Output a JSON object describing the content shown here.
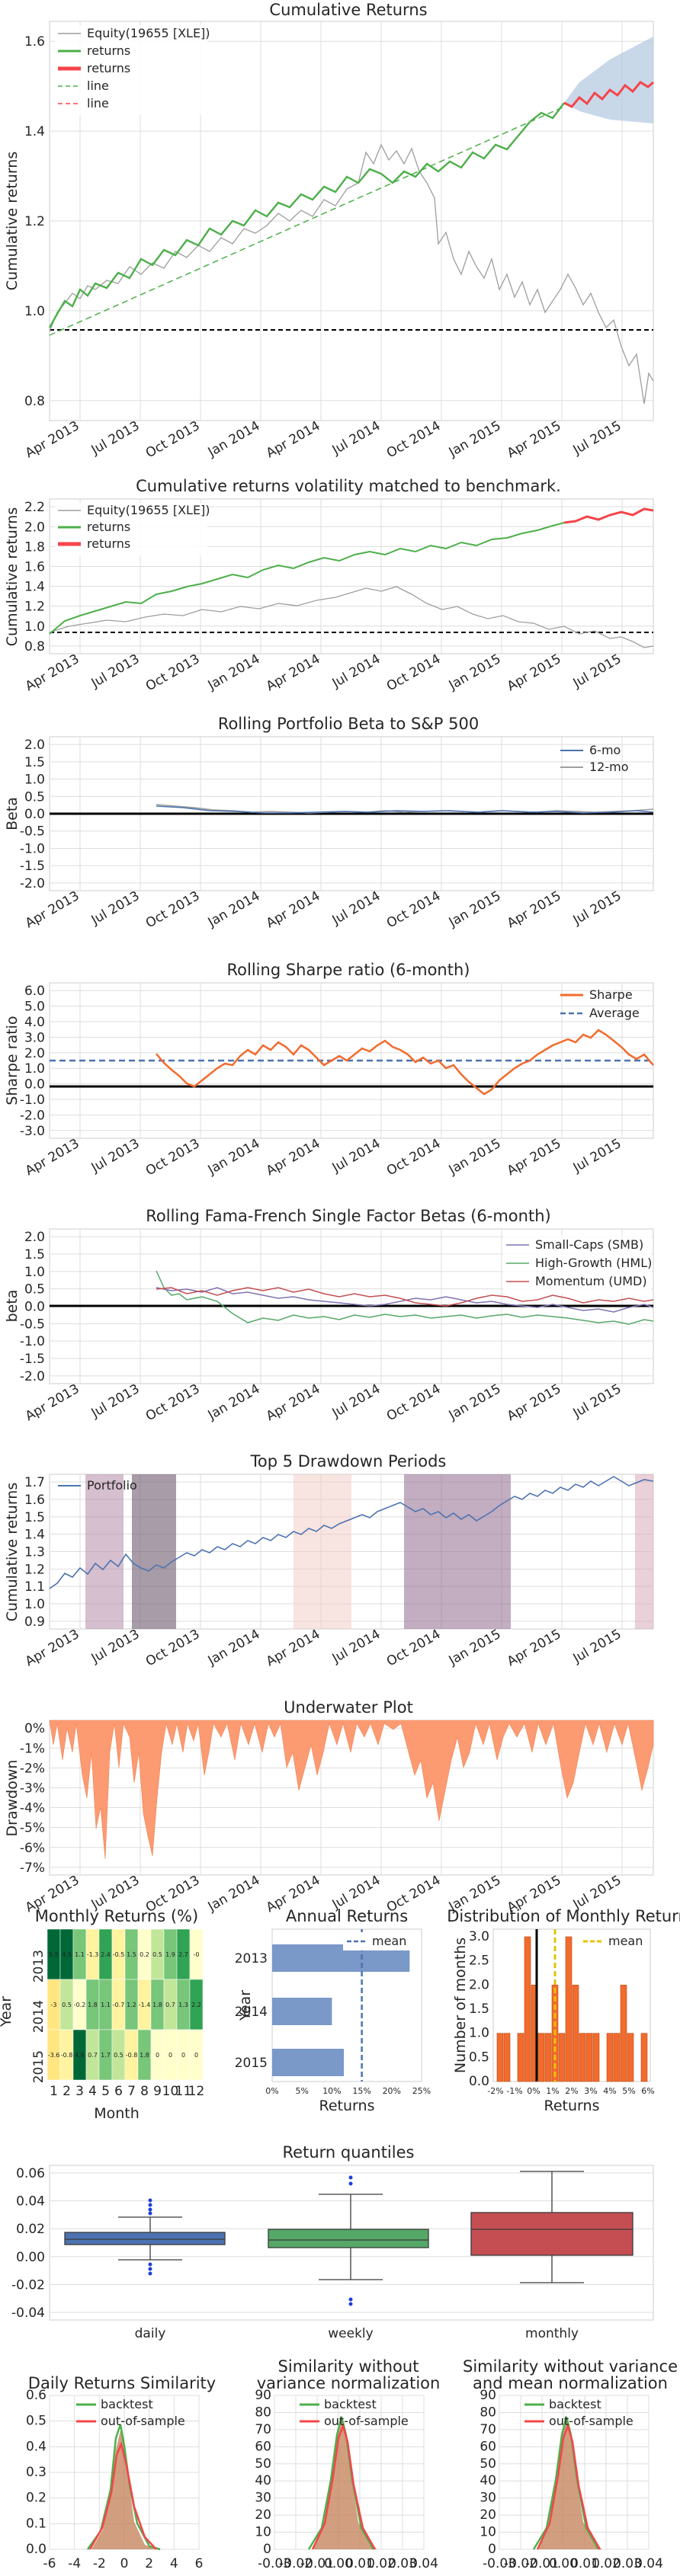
{
  "colors": {
    "benchmark": "#9e9e9e",
    "in_sample": "#4daf4a",
    "out_sample": "#f5454a",
    "cone": "#b0c8e0",
    "sharpe": "#f26b2d",
    "blue": "#4c72b0",
    "green": "#55a868",
    "red": "#c44e52",
    "purple": "#8172b2",
    "underwater": "#fc9a72",
    "hist": "#f26b2d",
    "mean_yellow": "#e8c200"
  },
  "chart_data": [
    {
      "id": "cumret",
      "type": "line",
      "title": "Cumulative Returns",
      "ylabel": "Cumulative returns",
      "xticks": [
        "Apr 2013",
        "Jul 2013",
        "Oct 2013",
        "Jan 2014",
        "Apr 2014",
        "Jul 2014",
        "Oct 2014",
        "Jan 2015",
        "Apr 2015",
        "Jul 2015"
      ],
      "yticks": [
        "0.8",
        "1.0",
        "1.2",
        "1.4",
        "1.6"
      ],
      "ylim": [
        0.8,
        1.7
      ],
      "legend": [
        "Equity(19655 [XLE])",
        "returns",
        "returns",
        "line",
        "line"
      ],
      "series": [
        {
          "name": "Equity(19655 [XLE])",
          "x": [
            "2013-01",
            "2013-04",
            "2013-07",
            "2013-10",
            "2014-01",
            "2014-04",
            "2014-07",
            "2014-10",
            "2015-01",
            "2015-04",
            "2015-07",
            "2015-09"
          ],
          "values": [
            1.0,
            1.12,
            1.15,
            1.24,
            1.22,
            1.35,
            1.42,
            1.3,
            1.1,
            1.08,
            1.02,
            0.9
          ]
        },
        {
          "name": "returns",
          "x": [
            "2013-01",
            "2013-04",
            "2013-07",
            "2013-10",
            "2014-01",
            "2014-04",
            "2014-07",
            "2014-10",
            "2015-01",
            "2015-04",
            "2015-06"
          ],
          "values": [
            1.02,
            1.13,
            1.17,
            1.23,
            1.25,
            1.32,
            1.34,
            1.37,
            1.39,
            1.47,
            1.5
          ]
        },
        {
          "name": "returns",
          "x": [
            "2015-06",
            "2015-07",
            "2015-08",
            "2015-09"
          ],
          "values": [
            1.5,
            1.52,
            1.53,
            1.55
          ]
        }
      ]
    },
    {
      "id": "volmatch",
      "type": "line",
      "title": "Cumulative returns volatility matched to benchmark.",
      "ylabel": "Cumulative returns",
      "xticks": [
        "Apr 2013",
        "Jul 2013",
        "Oct 2013",
        "Jan 2014",
        "Apr 2014",
        "Jul 2014",
        "Oct 2014",
        "Jan 2015",
        "Apr 2015",
        "Jul 2015"
      ],
      "yticks": [
        "0.8",
        "1.0",
        "1.2",
        "1.4",
        "1.6",
        "1.8",
        "2.0",
        "2.2"
      ],
      "ylim": [
        0.8,
        2.3
      ],
      "legend": [
        "Equity(19655 [XLE])",
        "returns",
        "returns"
      ]
    },
    {
      "id": "beta",
      "type": "line",
      "title": "Rolling Portfolio Beta to S&P 500",
      "ylabel": "Beta",
      "xticks": [
        "Apr 2013",
        "Jul 2013",
        "Oct 2013",
        "Jan 2014",
        "Apr 2014",
        "Jul 2014",
        "Oct 2014",
        "Jan 2015",
        "Apr 2015",
        "Jul 2015"
      ],
      "yticks": [
        "-2.0",
        "-1.5",
        "-1.0",
        "-0.5",
        "0.0",
        "0.5",
        "1.0",
        "1.5",
        "2.0"
      ],
      "ylim": [
        -2.5,
        2.5
      ],
      "legend": [
        "6-mo",
        "12-mo"
      ]
    },
    {
      "id": "sharpe",
      "type": "line",
      "title": "Rolling Sharpe ratio (6-month)",
      "ylabel": "Sharpe ratio",
      "xticks": [
        "Apr 2013",
        "Jul 2013",
        "Oct 2013",
        "Jan 2014",
        "Apr 2014",
        "Jul 2014",
        "Oct 2014",
        "Jan 2015",
        "Apr 2015",
        "Jul 2015"
      ],
      "yticks": [
        "-3.0",
        "-2.0",
        "-1.0",
        "0.0",
        "1.0",
        "2.0",
        "3.0",
        "4.0",
        "5.0",
        "6.0"
      ],
      "ylim": [
        -3.0,
        6.0
      ],
      "legend": [
        "Sharpe",
        "Average"
      ],
      "average": 1.5
    },
    {
      "id": "famafrench",
      "type": "line",
      "title": "Rolling Fama-French Single Factor Betas (6-month)",
      "ylabel": "beta",
      "xticks": [
        "Apr 2013",
        "Jul 2013",
        "Oct 2013",
        "Jan 2014",
        "Apr 2014",
        "Jul 2014",
        "Oct 2014",
        "Jan 2015",
        "Apr 2015",
        "Jul 2015"
      ],
      "yticks": [
        "-2.0",
        "-1.5",
        "-1.0",
        "-0.5",
        "0.0",
        "0.5",
        "1.0",
        "1.5",
        "2.0"
      ],
      "ylim": [
        -2.0,
        2.0
      ],
      "legend": [
        "Small-Caps (SMB)",
        "High-Growth (HML)",
        "Momentum (UMD)"
      ]
    },
    {
      "id": "drawdown",
      "type": "line",
      "title": "Top 5 Drawdown Periods",
      "ylabel": "Cumulative returns",
      "xticks": [
        "Apr 2013",
        "Jul 2013",
        "Oct 2013",
        "Jan 2014",
        "Apr 2014",
        "Jul 2014",
        "Oct 2014",
        "Jan 2015",
        "Apr 2015",
        "Jul 2015"
      ],
      "yticks": [
        "0.9",
        "1.0",
        "1.1",
        "1.2",
        "1.3",
        "1.4",
        "1.5",
        "1.6",
        "1.7"
      ],
      "ylim": [
        0.9,
        1.7
      ],
      "legend": [
        "Portfolio"
      ]
    },
    {
      "id": "underwater",
      "type": "area",
      "title": "Underwater Plot",
      "ylabel": "Drawdown",
      "xticks": [
        "Apr 2013",
        "Jul 2013",
        "Oct 2013",
        "Jan 2014",
        "Apr 2014",
        "Jul 2014",
        "Oct 2014",
        "Jan 2015",
        "Apr 2015",
        "Jul 2015"
      ],
      "yticks": [
        "0%",
        "-1%",
        "-2%",
        "-3%",
        "-4%",
        "-5%",
        "-6%",
        "-7%"
      ],
      "ylim": [
        -7,
        0
      ]
    },
    {
      "id": "monthly",
      "type": "heatmap",
      "title": "Monthly Returns (%)",
      "xlabel": "Month",
      "ylabel": "Year",
      "years": [
        "2013",
        "2014",
        "2015"
      ],
      "months": [
        "1",
        "2",
        "3",
        "4",
        "5",
        "6",
        "7",
        "8",
        "9",
        "10",
        "11",
        "12"
      ],
      "values": [
        [
          "5.5",
          "4.5",
          "1.1",
          "-1.3",
          "2.4",
          "-0.5",
          "1.5",
          "0.2",
          "0.5",
          "1.9",
          "2.7",
          "-0"
        ],
        [
          "-3",
          "0.5",
          "-0.2",
          "1.8",
          "1.1",
          "-0.7",
          "1.2",
          "-1.4",
          "1.8",
          "0.7",
          "1.3",
          "2.2"
        ],
        [
          "-3.6",
          "-0.8",
          "4.6",
          "0.7",
          "1.7",
          "0.5",
          "-0.8",
          "1.8",
          "0",
          "0",
          "0",
          "0"
        ]
      ]
    },
    {
      "id": "annual",
      "type": "bar",
      "title": "Annual Returns",
      "xlabel": "Returns",
      "ylabel": "Year",
      "categories": [
        "2013",
        "2014",
        "2015"
      ],
      "values": [
        23,
        10,
        12
      ],
      "mean": 15,
      "xticks": [
        "0%",
        "5%",
        "10%",
        "15%",
        "20%",
        "25%"
      ],
      "legend": [
        "mean"
      ]
    },
    {
      "id": "distribution",
      "type": "bar",
      "title": "Distribution of Monthly Returns",
      "xlabel": "Returns",
      "ylabel": "Number of months",
      "xticks": [
        "-2%",
        "-1%",
        "0%",
        "1%",
        "2%",
        "3%",
        "4%",
        "5%",
        "6%"
      ],
      "yticks": [
        "0.0",
        "0.5",
        "1.0",
        "1.5",
        "2.0",
        "2.5",
        "3.0"
      ],
      "legend": [
        "mean"
      ],
      "mean": 1.0
    },
    {
      "id": "quantiles",
      "type": "bar",
      "title": "Return quantiles",
      "categories": [
        "daily",
        "weekly",
        "monthly"
      ],
      "yticks": [
        "-0.04",
        "-0.02",
        "0.00",
        "0.02",
        "0.04",
        "0.06"
      ],
      "ylim": [
        -0.04,
        0.06
      ]
    },
    {
      "id": "sim1",
      "type": "area",
      "title": "Daily Returns Similarity",
      "legend": [
        "backtest",
        "out-of-sample"
      ],
      "xticks": [
        "-6",
        "-4",
        "-2",
        "0",
        "2",
        "4",
        "6"
      ],
      "yticks": [
        "0.0",
        "0.1",
        "0.2",
        "0.3",
        "0.4",
        "0.5",
        "0.6"
      ]
    },
    {
      "id": "sim2",
      "type": "area",
      "title": "Similarity without variance normalization",
      "legend": [
        "backtest",
        "out-of-sample"
      ],
      "xticks": [
        "-0.03",
        "-0.02",
        "-0.01",
        "0.00",
        "0.01",
        "0.02",
        "0.03",
        "0.04"
      ],
      "yticks": [
        "0",
        "10",
        "20",
        "30",
        "40",
        "50",
        "60",
        "70",
        "80",
        "90"
      ]
    },
    {
      "id": "sim3",
      "type": "area",
      "title": "Similarity without variance and mean normalization",
      "legend": [
        "backtest",
        "out-of-sample"
      ],
      "xticks": [
        "-0.03",
        "-0.02",
        "-0.01",
        "0.00",
        "0.01",
        "0.02",
        "0.03",
        "0.04"
      ],
      "yticks": [
        "0",
        "10",
        "20",
        "30",
        "40",
        "50",
        "60",
        "70",
        "80",
        "90"
      ]
    }
  ]
}
